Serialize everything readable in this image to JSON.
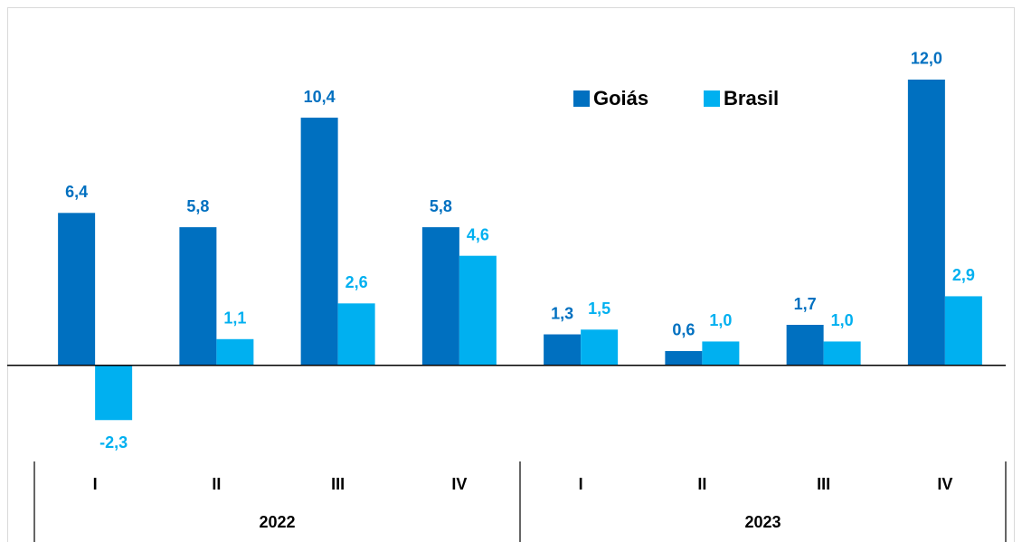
{
  "chart_data": {
    "type": "bar",
    "categories": [
      "I",
      "II",
      "III",
      "IV",
      "I",
      "II",
      "III",
      "IV"
    ],
    "groups": [
      "2022",
      "2023"
    ],
    "series": [
      {
        "name": "Goiás",
        "color": "#0070c0",
        "values": [
          6.4,
          5.8,
          10.4,
          5.8,
          1.3,
          0.6,
          1.7,
          12.0
        ],
        "value_labels": [
          "6,4",
          "5,8",
          "10,4",
          "5,8",
          "1,3",
          "0,6",
          "1,7",
          "12,0"
        ]
      },
      {
        "name": "Brasil",
        "color": "#00b0f0",
        "values": [
          -2.3,
          1.1,
          2.6,
          4.6,
          1.5,
          1.0,
          1.0,
          2.9
        ],
        "value_labels": [
          "-2,3",
          "1,1",
          "2,6",
          "4,6",
          "1,5",
          "1,0",
          "1,0",
          "2,9"
        ]
      }
    ],
    "ylim": [
      -4,
      15
    ],
    "legend": "top-right"
  }
}
